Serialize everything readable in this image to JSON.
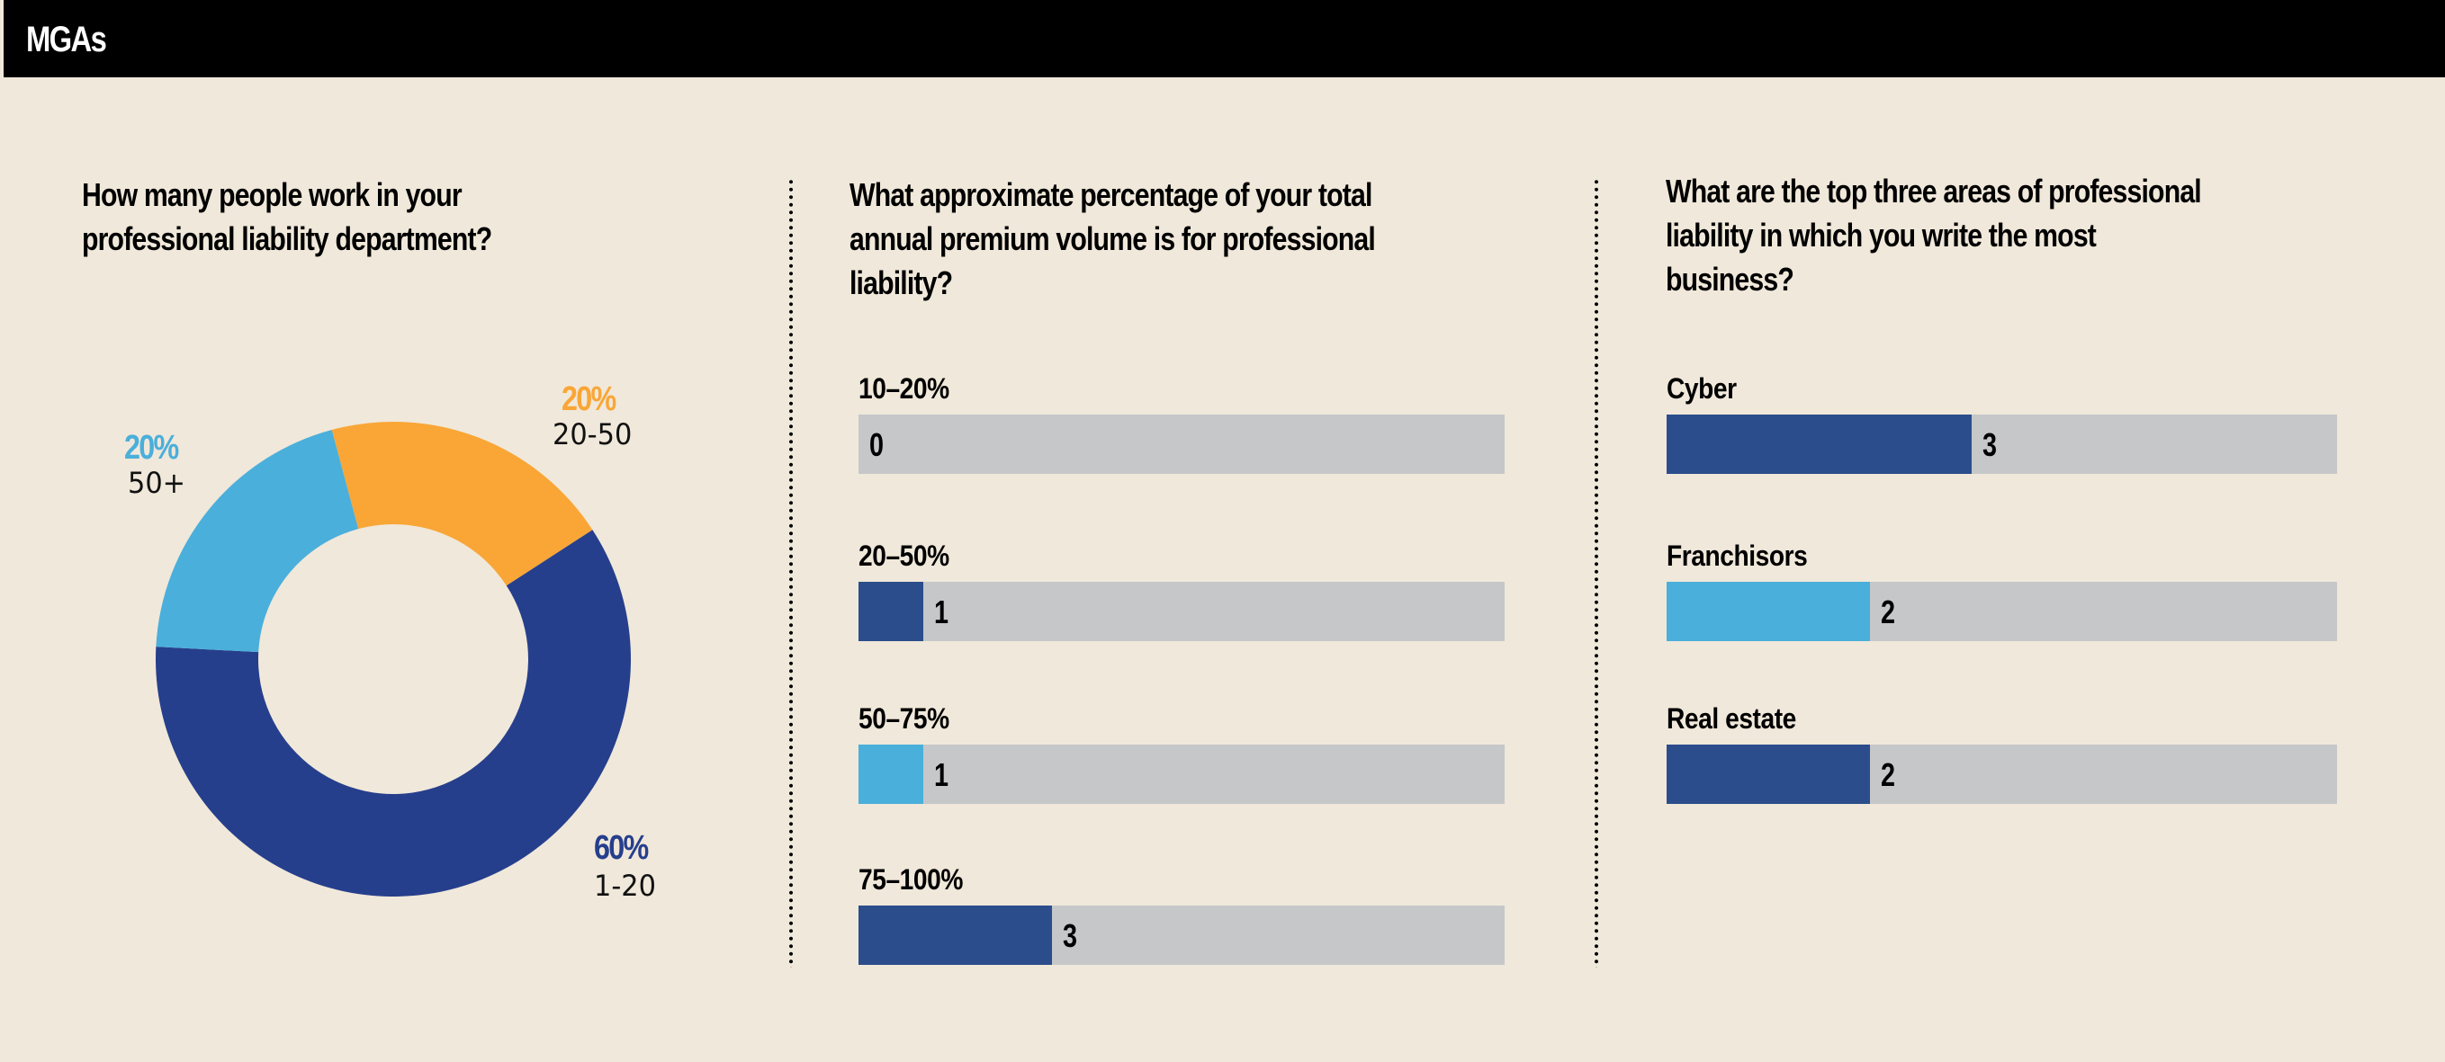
{
  "header": {
    "title": "MGAs"
  },
  "colors": {
    "dark_blue": "#263f8c",
    "bar_dark_blue": "#2b4d8b",
    "light_blue": "#4aafdb",
    "orange": "#f9a637",
    "track_gray": "#c6c7c9",
    "background": "#f0e8da"
  },
  "chart_data": [
    {
      "type": "pie",
      "subtype": "donut",
      "title": "How many people work in your\nprofessional liability department?",
      "slices": [
        {
          "label": "20-50",
          "value": 20,
          "pct_text": "20%",
          "color": "#f9a637"
        },
        {
          "label": "1-20",
          "value": 60,
          "pct_text": "60%",
          "color": "#263f8c"
        },
        {
          "label": "50+",
          "value": 20,
          "pct_text": "20%",
          "color": "#4aafdb"
        }
      ],
      "start_angle_deg": -15,
      "direction": "clockwise"
    },
    {
      "type": "bar",
      "orientation": "horizontal",
      "title": "What approximate percentage of your total\nannual premium volume is for professional\nliability?",
      "categories": [
        "10–20%",
        "20–50%",
        "50–75%",
        "75–100%"
      ],
      "values": [
        0,
        1,
        1,
        3
      ],
      "colors": [
        "#2b4d8b",
        "#2b4d8b",
        "#4aafdb",
        "#2b4d8b"
      ],
      "value_labels": [
        "0",
        "1",
        "1",
        "3"
      ],
      "xlim": [
        0,
        10
      ]
    },
    {
      "type": "bar",
      "orientation": "horizontal",
      "title": "What are the top three areas of professional\nliability in which you write the most\nbusiness?",
      "categories": [
        "Cyber",
        "Franchisors",
        "Real estate"
      ],
      "values": [
        3,
        2,
        2
      ],
      "colors": [
        "#2b4d8b",
        "#4aafdb",
        "#2b4d8b"
      ],
      "value_labels": [
        "3",
        "2",
        "2"
      ],
      "xlim": [
        0,
        6.6
      ]
    }
  ]
}
